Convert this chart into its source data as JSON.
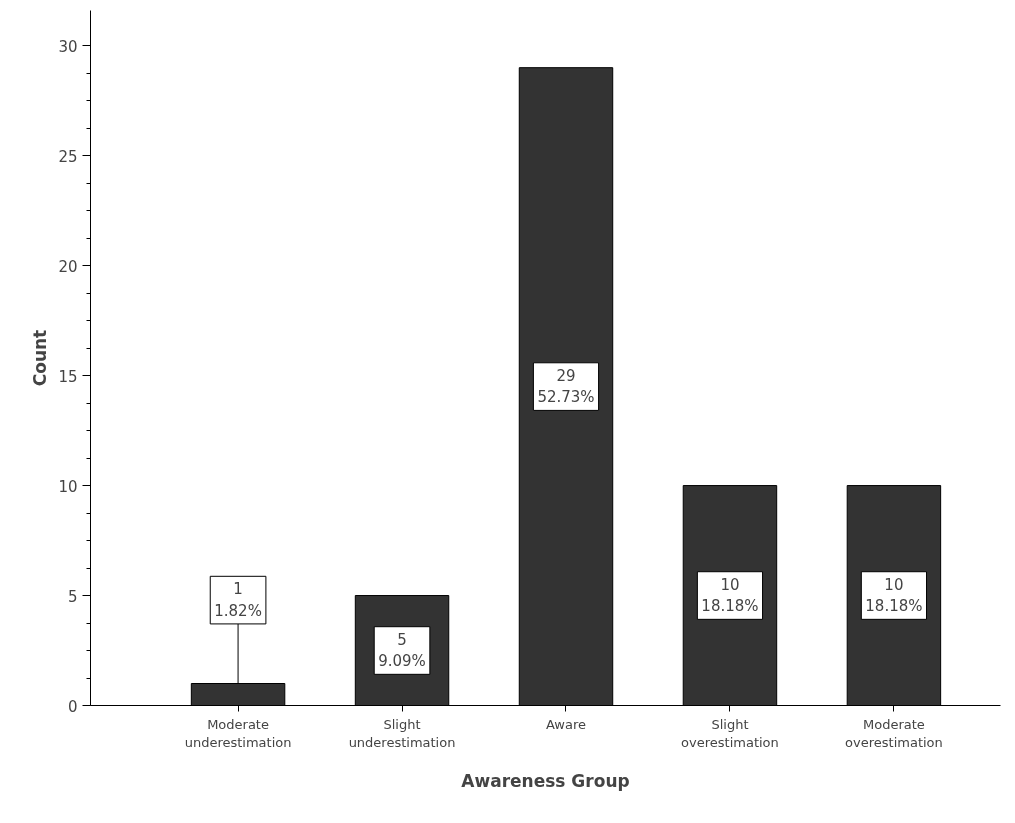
{
  "chart_data": {
    "type": "bar",
    "xlabel": "Awareness Group",
    "ylabel": "Count",
    "categories": [
      "Moderate underestimation",
      "Slight underestimation",
      "Aware",
      "Slight overestimation",
      "Moderate overestimation"
    ],
    "values": [
      1,
      5,
      29,
      10,
      10
    ],
    "value_labels": [
      "1\n1.82%",
      "5\n9.09%",
      "29\n52.73%",
      "10\n18.18%",
      "10\n18.18%"
    ],
    "color": "#333333",
    "ylim": [
      0,
      31.6
    ],
    "yticks": [
      0,
      5,
      10,
      15,
      20,
      25,
      30
    ],
    "grid": false
  }
}
